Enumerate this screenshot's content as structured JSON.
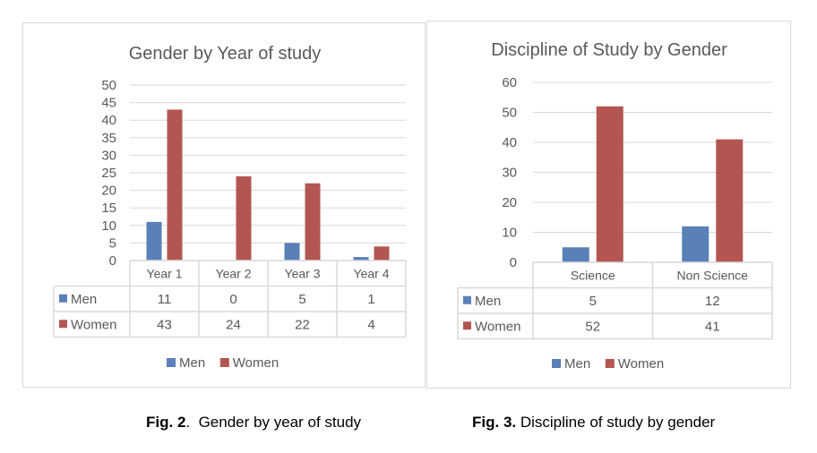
{
  "colors": {
    "men": "#5a80b8",
    "women": "#b35651",
    "grid": "#d9d9d9",
    "text": "#595959"
  },
  "chart_data": [
    {
      "type": "bar",
      "title": "Gender by Year of study",
      "categories": [
        "Year 1",
        "Year 2",
        "Year 3",
        "Year 4"
      ],
      "series": [
        {
          "name": "Men",
          "values": [
            11,
            0,
            5,
            1
          ]
        },
        {
          "name": "Women",
          "values": [
            43,
            24,
            22,
            4
          ]
        }
      ],
      "ylim": [
        0,
        50
      ],
      "yticks": [
        0,
        5,
        10,
        15,
        20,
        25,
        30,
        35,
        40,
        45,
        50
      ],
      "xlabel": "",
      "ylabel": "",
      "grid": true,
      "legend": "bottom",
      "data_table": true
    },
    {
      "type": "bar",
      "title": "Discipline of Study by Gender",
      "categories": [
        "Science",
        "Non Science"
      ],
      "series": [
        {
          "name": "Men",
          "values": [
            5,
            12
          ]
        },
        {
          "name": "Women",
          "values": [
            52,
            41
          ]
        }
      ],
      "ylim": [
        0,
        60
      ],
      "yticks": [
        0,
        10,
        20,
        30,
        40,
        50,
        60
      ],
      "xlabel": "",
      "ylabel": "",
      "grid": true,
      "legend": "bottom",
      "data_table": true
    }
  ],
  "captions": [
    {
      "label": "Fig. 2",
      "sep": ".",
      "text": "  Gender by year of study"
    },
    {
      "label": "Fig. 3.",
      "sep": "",
      "text": " Discipline of study by gender"
    }
  ]
}
